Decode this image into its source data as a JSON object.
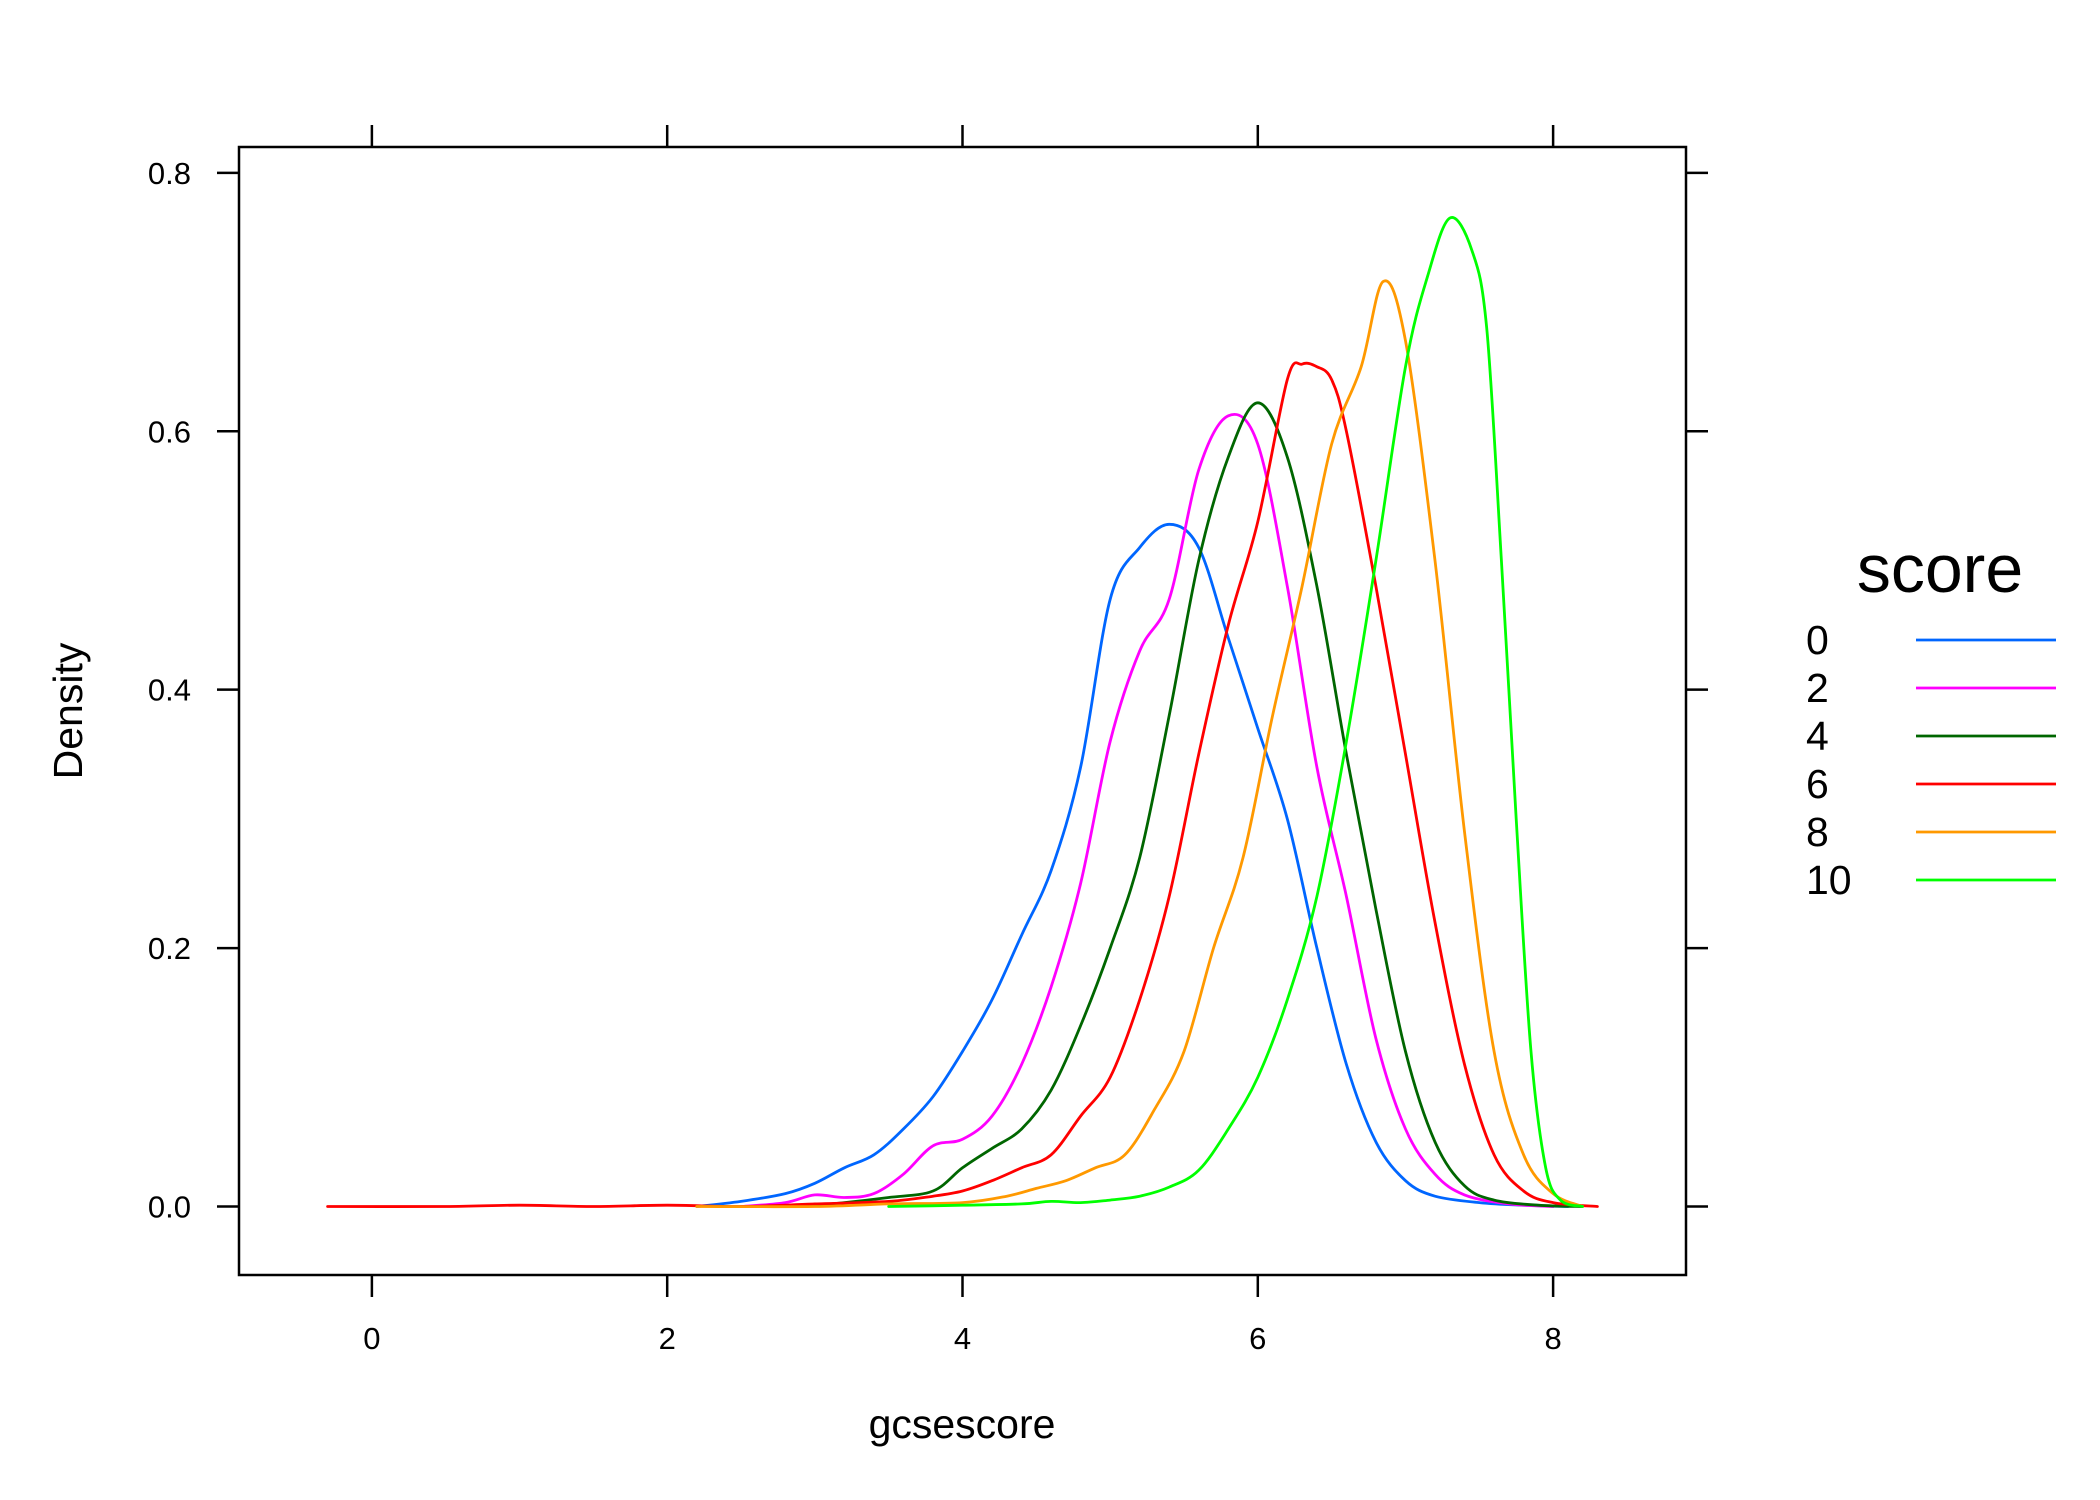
{
  "chart_data": {
    "type": "line",
    "xlabel": "gcsescore",
    "ylabel": "Density",
    "xlim": [
      -0.9,
      8.9
    ],
    "ylim": [
      -0.053,
      0.82
    ],
    "x_ticks": [
      0,
      2,
      4,
      6,
      8
    ],
    "y_ticks": [
      0.0,
      0.2,
      0.4,
      0.6,
      0.8
    ],
    "x_tick_labels": [
      "0",
      "2",
      "4",
      "6",
      "8"
    ],
    "y_tick_labels": [
      "0.0",
      "0.2",
      "0.4",
      "0.6",
      "0.8"
    ],
    "grid": false,
    "legend": {
      "title": "score",
      "position": "right"
    },
    "series": [
      {
        "name": "0",
        "color": "#0066ff",
        "points": [
          [
            2.2,
            0.0
          ],
          [
            2.5,
            0.004
          ],
          [
            2.8,
            0.01
          ],
          [
            3.0,
            0.018
          ],
          [
            3.2,
            0.03
          ],
          [
            3.4,
            0.04
          ],
          [
            3.6,
            0.06
          ],
          [
            3.8,
            0.085
          ],
          [
            4.0,
            0.12
          ],
          [
            4.2,
            0.16
          ],
          [
            4.4,
            0.21
          ],
          [
            4.6,
            0.26
          ],
          [
            4.8,
            0.34
          ],
          [
            5.0,
            0.47
          ],
          [
            5.2,
            0.51
          ],
          [
            5.4,
            0.528
          ],
          [
            5.6,
            0.51
          ],
          [
            5.8,
            0.44
          ],
          [
            6.0,
            0.37
          ],
          [
            6.2,
            0.3
          ],
          [
            6.4,
            0.2
          ],
          [
            6.6,
            0.11
          ],
          [
            6.8,
            0.05
          ],
          [
            7.0,
            0.02
          ],
          [
            7.2,
            0.008
          ],
          [
            7.5,
            0.003
          ],
          [
            7.8,
            0.001
          ],
          [
            8.1,
            0.0
          ]
        ]
      },
      {
        "name": "2",
        "color": "#ff00ff",
        "points": [
          [
            2.5,
            0.0
          ],
          [
            2.8,
            0.003
          ],
          [
            3.0,
            0.009
          ],
          [
            3.2,
            0.007
          ],
          [
            3.4,
            0.01
          ],
          [
            3.6,
            0.025
          ],
          [
            3.8,
            0.047
          ],
          [
            4.0,
            0.052
          ],
          [
            4.2,
            0.07
          ],
          [
            4.4,
            0.11
          ],
          [
            4.6,
            0.17
          ],
          [
            4.8,
            0.25
          ],
          [
            5.0,
            0.36
          ],
          [
            5.2,
            0.43
          ],
          [
            5.4,
            0.47
          ],
          [
            5.6,
            0.57
          ],
          [
            5.8,
            0.612
          ],
          [
            6.0,
            0.59
          ],
          [
            6.2,
            0.48
          ],
          [
            6.4,
            0.34
          ],
          [
            6.6,
            0.24
          ],
          [
            6.8,
            0.13
          ],
          [
            7.0,
            0.06
          ],
          [
            7.2,
            0.025
          ],
          [
            7.4,
            0.009
          ],
          [
            7.7,
            0.002
          ],
          [
            8.0,
            0.0
          ]
        ]
      },
      {
        "name": "4",
        "color": "#006600",
        "points": [
          [
            2.9,
            0.0
          ],
          [
            3.2,
            0.003
          ],
          [
            3.5,
            0.007
          ],
          [
            3.8,
            0.012
          ],
          [
            4.0,
            0.03
          ],
          [
            4.2,
            0.045
          ],
          [
            4.4,
            0.06
          ],
          [
            4.6,
            0.09
          ],
          [
            4.8,
            0.14
          ],
          [
            5.0,
            0.2
          ],
          [
            5.2,
            0.27
          ],
          [
            5.4,
            0.38
          ],
          [
            5.6,
            0.5
          ],
          [
            5.8,
            0.58
          ],
          [
            6.0,
            0.622
          ],
          [
            6.2,
            0.58
          ],
          [
            6.4,
            0.48
          ],
          [
            6.6,
            0.35
          ],
          [
            6.8,
            0.23
          ],
          [
            7.0,
            0.12
          ],
          [
            7.2,
            0.05
          ],
          [
            7.4,
            0.016
          ],
          [
            7.6,
            0.005
          ],
          [
            7.9,
            0.001
          ],
          [
            8.2,
            0.0
          ]
        ]
      },
      {
        "name": "6",
        "color": "#ff0000",
        "points": [
          [
            -0.3,
            0.0
          ],
          [
            0.5,
            0.0
          ],
          [
            1.0,
            0.001
          ],
          [
            1.5,
            0.0
          ],
          [
            2.0,
            0.001
          ],
          [
            2.5,
            0.0
          ],
          [
            3.0,
            0.002
          ],
          [
            3.5,
            0.004
          ],
          [
            3.8,
            0.008
          ],
          [
            4.0,
            0.012
          ],
          [
            4.2,
            0.02
          ],
          [
            4.4,
            0.03
          ],
          [
            4.6,
            0.04
          ],
          [
            4.8,
            0.07
          ],
          [
            5.0,
            0.1
          ],
          [
            5.2,
            0.16
          ],
          [
            5.4,
            0.24
          ],
          [
            5.6,
            0.35
          ],
          [
            5.8,
            0.45
          ],
          [
            6.0,
            0.53
          ],
          [
            6.2,
            0.64
          ],
          [
            6.3,
            0.652
          ],
          [
            6.4,
            0.65
          ],
          [
            6.5,
            0.64
          ],
          [
            6.6,
            0.6
          ],
          [
            6.8,
            0.48
          ],
          [
            7.0,
            0.35
          ],
          [
            7.2,
            0.22
          ],
          [
            7.4,
            0.11
          ],
          [
            7.6,
            0.04
          ],
          [
            7.8,
            0.012
          ],
          [
            8.0,
            0.003
          ],
          [
            8.3,
            0.0
          ]
        ]
      },
      {
        "name": "8",
        "color": "#ff9900",
        "points": [
          [
            2.2,
            0.0
          ],
          [
            3.0,
            0.0
          ],
          [
            3.5,
            0.002
          ],
          [
            4.0,
            0.003
          ],
          [
            4.3,
            0.008
          ],
          [
            4.5,
            0.014
          ],
          [
            4.7,
            0.02
          ],
          [
            4.9,
            0.03
          ],
          [
            5.1,
            0.04
          ],
          [
            5.3,
            0.075
          ],
          [
            5.5,
            0.12
          ],
          [
            5.7,
            0.2
          ],
          [
            5.9,
            0.27
          ],
          [
            6.1,
            0.38
          ],
          [
            6.3,
            0.48
          ],
          [
            6.5,
            0.59
          ],
          [
            6.7,
            0.65
          ],
          [
            6.85,
            0.716
          ],
          [
            7.0,
            0.67
          ],
          [
            7.2,
            0.5
          ],
          [
            7.4,
            0.29
          ],
          [
            7.6,
            0.12
          ],
          [
            7.8,
            0.04
          ],
          [
            8.0,
            0.01
          ],
          [
            8.2,
            0.0
          ]
        ]
      },
      {
        "name": "10",
        "color": "#00ff00",
        "points": [
          [
            3.5,
            0.0
          ],
          [
            4.0,
            0.001
          ],
          [
            4.4,
            0.002
          ],
          [
            4.6,
            0.004
          ],
          [
            4.8,
            0.003
          ],
          [
            5.0,
            0.005
          ],
          [
            5.2,
            0.008
          ],
          [
            5.4,
            0.015
          ],
          [
            5.6,
            0.028
          ],
          [
            5.8,
            0.06
          ],
          [
            6.0,
            0.1
          ],
          [
            6.2,
            0.16
          ],
          [
            6.4,
            0.24
          ],
          [
            6.6,
            0.36
          ],
          [
            6.8,
            0.5
          ],
          [
            7.0,
            0.65
          ],
          [
            7.15,
            0.72
          ],
          [
            7.3,
            0.765
          ],
          [
            7.45,
            0.74
          ],
          [
            7.55,
            0.68
          ],
          [
            7.65,
            0.5
          ],
          [
            7.75,
            0.3
          ],
          [
            7.85,
            0.12
          ],
          [
            7.95,
            0.03
          ],
          [
            8.05,
            0.005
          ],
          [
            8.2,
            0.0
          ]
        ]
      }
    ]
  }
}
